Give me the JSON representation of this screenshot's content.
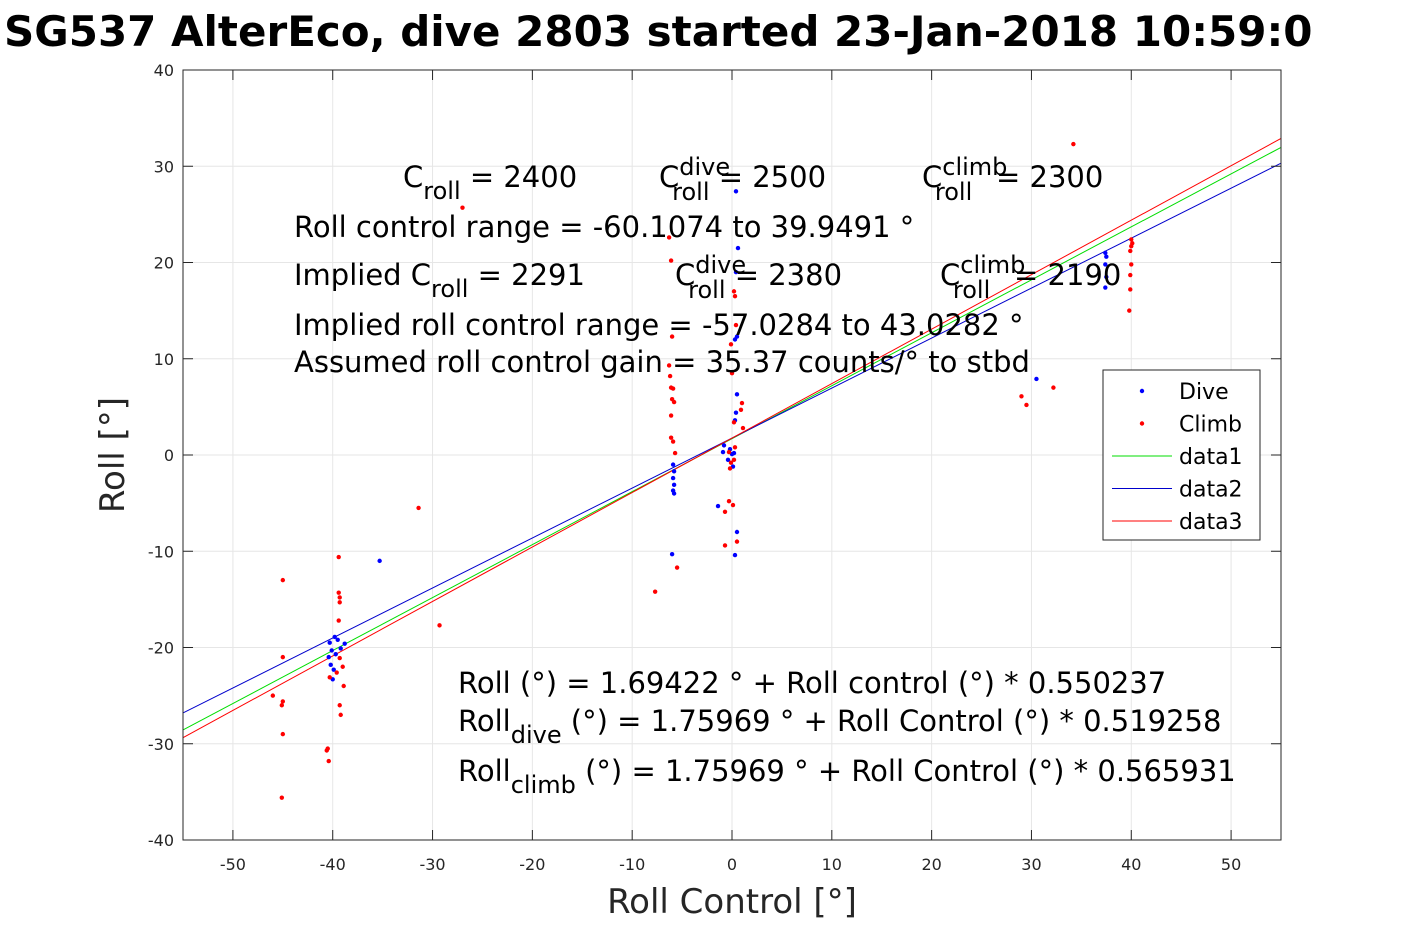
{
  "title": "SG537 AlterEco, dive 2803 started 23-Jan-2018 10:59:0",
  "chart_data": {
    "type": "scatter",
    "xlabel": "Roll Control [°]",
    "ylabel": "Roll [°]",
    "xlim": [
      -55,
      55
    ],
    "ylim": [
      -40,
      40
    ],
    "xticks": [
      -50,
      -40,
      -30,
      -20,
      -10,
      0,
      10,
      20,
      30,
      40,
      50
    ],
    "yticks": [
      -40,
      -30,
      -20,
      -10,
      0,
      10,
      20,
      30,
      40
    ],
    "xtick_labels": [
      "-50",
      "-40",
      "-30",
      "-20",
      "-10",
      "0",
      "10",
      "20",
      "30",
      "40",
      "50"
    ],
    "ytick_labels": [
      "-40",
      "-30",
      "-20",
      "-10",
      "0",
      "10",
      "20",
      "30",
      "40"
    ],
    "grid": true,
    "legend_position": "right",
    "legend": [
      {
        "label": "Dive",
        "kind": "marker",
        "color": "#0000ff"
      },
      {
        "label": "Climb",
        "kind": "marker",
        "color": "#ff0000"
      },
      {
        "label": "data1",
        "kind": "line",
        "color": "#00dd00"
      },
      {
        "label": "data2",
        "kind": "line",
        "color": "#0000cc"
      },
      {
        "label": "data3",
        "kind": "line",
        "color": "#ff0000"
      }
    ],
    "lines": [
      {
        "name": "data1",
        "color": "#00dd00",
        "intercept": 1.69422,
        "slope": 0.550237
      },
      {
        "name": "data2",
        "color": "#0000cc",
        "intercept": 1.75969,
        "slope": 0.519258
      },
      {
        "name": "data3",
        "color": "#ff0000",
        "intercept": 1.75969,
        "slope": 0.565931
      }
    ],
    "series": [
      {
        "name": "Dive",
        "color": "#0000ff",
        "points": [
          [
            -40.3,
            -19.5
          ],
          [
            -40.1,
            -20.3
          ],
          [
            -40.4,
            -21.0
          ],
          [
            -40.2,
            -21.8
          ],
          [
            -39.9,
            -22.3
          ],
          [
            -39.7,
            -20.7
          ],
          [
            -39.5,
            -19.2
          ],
          [
            -39.8,
            -18.9
          ],
          [
            -39.2,
            -20.1
          ],
          [
            -38.8,
            -19.6
          ],
          [
            -40.0,
            -23.3
          ],
          [
            -35.3,
            -11.0
          ],
          [
            -5.9,
            -1.0
          ],
          [
            -5.8,
            -1.7
          ],
          [
            -5.9,
            -2.4
          ],
          [
            -5.8,
            -3.1
          ],
          [
            -5.9,
            -3.7
          ],
          [
            -5.8,
            -4.0
          ],
          [
            -6.0,
            -10.3
          ],
          [
            -1.4,
            -5.3
          ],
          [
            -0.9,
            0.3
          ],
          [
            -0.8,
            1.0
          ],
          [
            -0.4,
            -0.5
          ],
          [
            -0.2,
            0.6
          ],
          [
            0.0,
            0.1
          ],
          [
            0.2,
            0.2
          ],
          [
            0.1,
            -1.2
          ],
          [
            0.3,
            3.6
          ],
          [
            0.4,
            4.4
          ],
          [
            0.5,
            6.3
          ],
          [
            0.3,
            12.0
          ],
          [
            0.5,
            12.3
          ],
          [
            0.4,
            19.0
          ],
          [
            0.6,
            21.5
          ],
          [
            0.4,
            27.4
          ],
          [
            0.5,
            -8.0
          ],
          [
            0.3,
            -10.4
          ],
          [
            30.5,
            7.9
          ],
          [
            37.4,
            17.4
          ],
          [
            37.5,
            18.5
          ],
          [
            37.4,
            19.8
          ],
          [
            37.5,
            20.6
          ],
          [
            37.4,
            21.0
          ]
        ]
      },
      {
        "name": "Climb",
        "color": "#ff0000",
        "points": [
          [
            -45.0,
            -13.0
          ],
          [
            -45.0,
            -21.0
          ],
          [
            -45.0,
            -25.6
          ],
          [
            -45.1,
            -26.0
          ],
          [
            -45.0,
            -29.0
          ],
          [
            -45.1,
            -35.6
          ],
          [
            -46.0,
            -25.0
          ],
          [
            -40.3,
            -23.1
          ],
          [
            -40.5,
            -30.5
          ],
          [
            -40.4,
            -31.8
          ],
          [
            -40.6,
            -30.7
          ],
          [
            -39.4,
            -10.6
          ],
          [
            -39.4,
            -14.3
          ],
          [
            -39.3,
            -14.8
          ],
          [
            -39.3,
            -15.3
          ],
          [
            -39.4,
            -17.2
          ],
          [
            -39.3,
            -21.1
          ],
          [
            -39.6,
            -22.6
          ],
          [
            -39.3,
            -26.0
          ],
          [
            -39.2,
            -27.0
          ],
          [
            -38.9,
            -24.0
          ],
          [
            -39.0,
            -22.0
          ],
          [
            -31.4,
            -5.5
          ],
          [
            -29.3,
            -17.7
          ],
          [
            -27.0,
            25.7
          ],
          [
            -7.7,
            -14.2
          ],
          [
            -6.3,
            22.6
          ],
          [
            -6.1,
            20.2
          ],
          [
            -6.0,
            12.3
          ],
          [
            -6.3,
            9.3
          ],
          [
            -6.2,
            8.2
          ],
          [
            -6.1,
            7.0
          ],
          [
            -5.9,
            6.9
          ],
          [
            -6.0,
            5.8
          ],
          [
            -5.8,
            5.5
          ],
          [
            -6.1,
            4.1
          ],
          [
            -6.1,
            1.8
          ],
          [
            -5.9,
            1.4
          ],
          [
            -5.7,
            0.2
          ],
          [
            -5.5,
            -11.7
          ],
          [
            -0.7,
            -9.4
          ],
          [
            -0.7,
            -5.9
          ],
          [
            -0.3,
            -4.8
          ],
          [
            0.1,
            -5.2
          ],
          [
            0.5,
            -9.0
          ],
          [
            -0.2,
            -1.4
          ],
          [
            -0.1,
            -0.8
          ],
          [
            0.2,
            -0.5
          ],
          [
            -0.3,
            0.3
          ],
          [
            0.3,
            0.8
          ],
          [
            0.2,
            3.4
          ],
          [
            0.9,
            4.7
          ],
          [
            1.0,
            5.4
          ],
          [
            1.1,
            2.8
          ],
          [
            0.0,
            8.5
          ],
          [
            -0.1,
            11.5
          ],
          [
            0.4,
            13.5
          ],
          [
            0.3,
            16.5
          ],
          [
            0.2,
            17.0
          ],
          [
            29.0,
            6.1
          ],
          [
            29.5,
            5.2
          ],
          [
            32.2,
            7.0
          ],
          [
            34.2,
            32.3
          ],
          [
            39.8,
            15.0
          ],
          [
            39.9,
            17.2
          ],
          [
            39.9,
            18.7
          ],
          [
            40.0,
            19.8
          ],
          [
            39.9,
            21.2
          ],
          [
            40.0,
            21.7
          ],
          [
            40.1,
            22.0
          ],
          [
            40.0,
            22.4
          ]
        ]
      }
    ],
    "annotations": {
      "c_roll": "C_roll = 2400",
      "c_roll_dive": "C_roll^dive = 2500",
      "c_roll_climb": "C_roll^climb = 2300",
      "range": "Roll control range = -60.1074 to 39.9491 °",
      "implied_c_roll": "Implied C_roll = 2291",
      "implied_c_roll_dive": "C_roll^dive = 2380",
      "implied_c_roll_climb": "C_roll^climb = 2190",
      "implied_range": "Implied roll control range = -57.0284 to 43.0282 °",
      "gain": "Assumed roll control gain = 35.37 counts/° to stbd",
      "fit_all": "Roll (°) = 1.69422 ° + Roll control (°) * 0.550237",
      "fit_dive": "Roll_dive (°) = 1.75969 ° + Roll Control (°) * 0.519258",
      "fit_climb": "Roll_climb (°) = 1.75969 ° + Roll Control (°) * 0.565931"
    }
  }
}
